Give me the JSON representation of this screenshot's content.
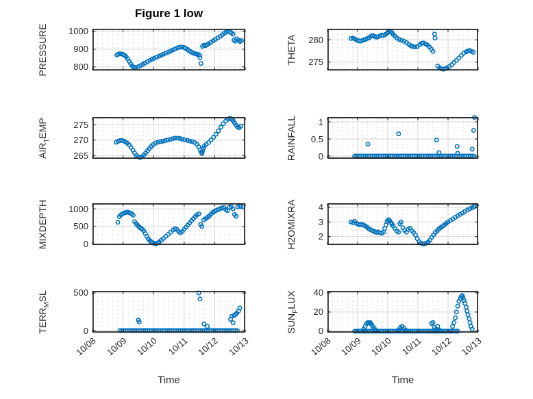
{
  "figure": {
    "title": "Figure 1 low",
    "x_axis_label": "Time",
    "marker_color": "#0072BD",
    "axis_color": "#262626",
    "major_grid_color": "#d5d5d5",
    "minor_grid_color": "#c4c4c4"
  },
  "x_axis": {
    "lim": [
      0,
      5
    ],
    "tick_values": [
      0,
      1,
      2,
      3,
      4,
      5
    ],
    "tick_labels": [
      "10/08",
      "10/09",
      "10/10",
      "10/11",
      "10/12",
      "10/13"
    ]
  },
  "chart_data": [
    {
      "name": "PRESSURE",
      "type": "scatter",
      "col": 0,
      "row": 0,
      "ylabel": {
        "pre": "PRESSURE",
        "sub": "",
        "post": ""
      },
      "ylim": [
        780,
        1015
      ],
      "yticks": [
        800,
        900,
        1000
      ],
      "ytick_labels": [
        "800",
        "900",
        "1000"
      ],
      "x": [
        0.8,
        0.85,
        0.9,
        0.95,
        1.0,
        1.05,
        1.1,
        1.15,
        1.2,
        1.25,
        1.3,
        1.35,
        1.42,
        1.5,
        1.58,
        1.65,
        1.72,
        1.8,
        1.88,
        1.95,
        2.02,
        2.1,
        2.18,
        2.25,
        2.32,
        2.4,
        2.48,
        2.55,
        2.62,
        2.7,
        2.78,
        2.85,
        2.92,
        3.0,
        3.05,
        3.1,
        3.15,
        3.2,
        3.25,
        3.3,
        3.35,
        3.4,
        3.45,
        3.5,
        3.52,
        3.55,
        3.6,
        3.65,
        3.7,
        3.75,
        3.8,
        3.88,
        3.95,
        4.02,
        4.1,
        4.18,
        4.25,
        4.32,
        4.38,
        4.44,
        4.5,
        4.55,
        4.6,
        4.63,
        4.67,
        4.72,
        4.78,
        4.83,
        4.88
      ],
      "y": [
        868,
        872,
        874,
        873,
        870,
        866,
        858,
        846,
        832,
        818,
        806,
        798,
        797,
        802,
        808,
        815,
        822,
        830,
        837,
        843,
        849,
        855,
        861,
        866,
        872,
        877,
        883,
        889,
        895,
        901,
        907,
        911,
        912,
        909,
        905,
        899,
        893,
        887,
        882,
        878,
        875,
        872,
        870,
        868,
        852,
        820,
        916,
        922,
        920,
        925,
        931,
        939,
        947,
        955,
        963,
        972,
        981,
        990,
        997,
        1000,
        998,
        992,
        984,
        952,
        945,
        958,
        950,
        943,
        948
      ]
    },
    {
      "name": "THETA",
      "type": "scatter",
      "col": 1,
      "row": 0,
      "ylabel": {
        "pre": "THETA",
        "sub": "",
        "post": ""
      },
      "ylim": [
        273.1,
        282.5
      ],
      "yticks": [
        275,
        280
      ],
      "ytick_labels": [
        "275",
        "280"
      ],
      "x": [
        0.78,
        0.84,
        0.9,
        0.96,
        1.02,
        1.08,
        1.14,
        1.2,
        1.26,
        1.32,
        1.38,
        1.44,
        1.5,
        1.56,
        1.62,
        1.68,
        1.74,
        1.8,
        1.86,
        1.92,
        1.98,
        2.02,
        2.06,
        2.1,
        2.14,
        2.18,
        2.24,
        2.3,
        2.38,
        2.46,
        2.54,
        2.62,
        2.7,
        2.76,
        2.82,
        2.9,
        2.98,
        3.06,
        3.12,
        3.18,
        3.26,
        3.32,
        3.38,
        3.44,
        3.5,
        3.55,
        3.57,
        3.66,
        3.72,
        3.78,
        3.84,
        3.9,
        3.96,
        4.04,
        4.12,
        4.2,
        4.28,
        4.36,
        4.44,
        4.52,
        4.6,
        4.66,
        4.72,
        4.78,
        4.84
      ],
      "y": [
        280.3,
        280.4,
        280.2,
        280.0,
        279.8,
        279.7,
        279.8,
        280.0,
        280.1,
        280.3,
        280.5,
        280.8,
        281.0,
        280.8,
        280.6,
        280.7,
        280.9,
        281.1,
        281.0,
        281.2,
        281.5,
        281.8,
        282.0,
        281.9,
        281.6,
        281.2,
        280.8,
        280.4,
        280.1,
        279.9,
        279.7,
        279.4,
        279.0,
        278.7,
        278.5,
        278.4,
        278.5,
        278.9,
        279.2,
        279.3,
        279.1,
        278.8,
        278.4,
        277.9,
        277.4,
        281.3,
        280.4,
        274.1,
        273.7,
        273.5,
        273.4,
        273.5,
        273.7,
        274.0,
        274.4,
        274.9,
        275.4,
        275.9,
        276.5,
        277.0,
        277.3,
        277.5,
        277.6,
        277.4,
        277.2
      ]
    },
    {
      "name": "AIR_TEMP",
      "type": "scatter",
      "col": 0,
      "row": 1,
      "ylabel": {
        "pre": "AIR",
        "sub": "T",
        "post": "EMP"
      },
      "ylim": [
        263.9,
        277.5
      ],
      "yticks": [
        265,
        270,
        275
      ],
      "ytick_labels": [
        "265",
        "270",
        "275"
      ],
      "x": [
        0.78,
        0.84,
        0.9,
        0.96,
        1.02,
        1.08,
        1.14,
        1.2,
        1.26,
        1.32,
        1.38,
        1.44,
        1.5,
        1.56,
        1.62,
        1.68,
        1.74,
        1.8,
        1.86,
        1.92,
        1.98,
        2.06,
        2.14,
        2.22,
        2.3,
        2.38,
        2.46,
        2.54,
        2.62,
        2.7,
        2.78,
        2.86,
        2.94,
        3.02,
        3.1,
        3.18,
        3.26,
        3.34,
        3.42,
        3.48,
        3.52,
        3.56,
        3.58,
        3.6,
        3.63,
        3.66,
        3.72,
        3.8,
        3.88,
        3.96,
        4.04,
        4.12,
        4.2,
        4.28,
        4.36,
        4.44,
        4.5,
        4.55,
        4.6,
        4.65,
        4.7,
        4.75,
        4.8,
        4.85
      ],
      "y": [
        269.3,
        269.6,
        269.8,
        269.9,
        269.7,
        269.4,
        269.0,
        268.4,
        267.6,
        266.7,
        265.8,
        265.0,
        264.5,
        264.3,
        264.6,
        265.2,
        265.8,
        266.5,
        267.2,
        267.9,
        268.5,
        269.0,
        269.3,
        269.5,
        269.6,
        269.8,
        270.0,
        270.2,
        270.4,
        270.6,
        270.6,
        270.5,
        270.3,
        270.1,
        269.9,
        269.7,
        269.5,
        269.2,
        268.6,
        267.8,
        266.8,
        266.0,
        265.6,
        266.4,
        267.3,
        268.0,
        268.6,
        269.2,
        270.0,
        270.9,
        271.9,
        273.0,
        274.2,
        275.3,
        276.2,
        276.8,
        277.1,
        276.8,
        276.3,
        275.6,
        274.9,
        274.3,
        274.0,
        274.5
      ]
    },
    {
      "name": "RAINFALL",
      "type": "scatter",
      "col": 1,
      "row": 1,
      "ylabel": {
        "pre": "RAINFALL",
        "sub": "",
        "post": ""
      },
      "ylim": [
        -0.08,
        1.14
      ],
      "yticks": [
        0,
        0.5,
        1
      ],
      "ytick_labels": [
        "0",
        "0.5",
        "1"
      ],
      "x": [
        0.9,
        0.96,
        1.02,
        1.08,
        1.14,
        1.2,
        1.26,
        1.32,
        1.38,
        1.44,
        1.5,
        1.56,
        1.62,
        1.68,
        1.74,
        1.8,
        1.86,
        1.92,
        1.98,
        2.04,
        2.1,
        2.16,
        2.22,
        2.28,
        2.34,
        2.4,
        2.46,
        2.52,
        2.58,
        2.64,
        2.7,
        2.76,
        2.82,
        2.88,
        2.94,
        3.0,
        3.06,
        3.12,
        3.18,
        3.24,
        3.3,
        3.36,
        3.42,
        3.48,
        3.54,
        3.6,
        3.66,
        3.72,
        3.78,
        3.84,
        3.9,
        3.96,
        4.02,
        4.08,
        4.14,
        4.2,
        4.26,
        4.32,
        4.38,
        4.44,
        4.5,
        4.56,
        4.62,
        4.68,
        4.74,
        4.8,
        4.86,
        1.34,
        2.36,
        3.62,
        3.7,
        4.3,
        4.32,
        4.8,
        4.85,
        4.88
      ],
      "y": [
        0,
        0,
        0,
        0,
        0,
        0,
        0,
        0,
        0,
        0,
        0,
        0,
        0,
        0,
        0,
        0,
        0,
        0,
        0,
        0,
        0,
        0,
        0,
        0,
        0,
        0,
        0,
        0,
        0,
        0,
        0,
        0,
        0,
        0,
        0,
        0,
        0,
        0,
        0,
        0,
        0,
        0,
        0,
        0,
        0,
        0,
        0,
        0,
        0,
        0,
        0,
        0,
        0,
        0,
        0,
        0,
        0,
        0,
        0,
        0,
        0,
        0,
        0,
        0,
        0,
        0,
        0,
        0.35,
        0.65,
        0.47,
        0.1,
        0.28,
        0.08,
        0.2,
        0.75,
        1.13
      ]
    },
    {
      "name": "MIXDEPTH",
      "type": "scatter",
      "col": 0,
      "row": 2,
      "ylabel": {
        "pre": "MIXDEPTH",
        "sub": "",
        "post": ""
      },
      "ylim": [
        -25,
        1160
      ],
      "yticks": [
        0,
        500,
        1000
      ],
      "ytick_labels": [
        "0",
        "500",
        "1000"
      ],
      "x": [
        0.83,
        0.88,
        0.93,
        0.98,
        1.03,
        1.08,
        1.13,
        1.18,
        1.23,
        1.28,
        1.33,
        1.38,
        1.43,
        1.48,
        1.53,
        1.58,
        1.63,
        1.68,
        1.73,
        1.78,
        1.83,
        1.88,
        1.93,
        1.98,
        2.03,
        2.08,
        2.13,
        2.18,
        2.25,
        2.32,
        2.4,
        2.48,
        2.56,
        2.64,
        2.7,
        2.76,
        2.82,
        2.88,
        2.94,
        3.0,
        3.06,
        3.12,
        3.18,
        3.24,
        3.3,
        3.36,
        3.42,
        3.48,
        3.54,
        3.58,
        3.64,
        3.7,
        3.76,
        3.82,
        3.88,
        3.94,
        4.0,
        4.06,
        4.12,
        4.18,
        4.24,
        4.3,
        4.36,
        4.42,
        4.48,
        4.54,
        4.6,
        4.65,
        4.7,
        4.76,
        4.82,
        4.87
      ],
      "y": [
        620,
        780,
        830,
        860,
        880,
        895,
        905,
        900,
        885,
        860,
        820,
        640,
        580,
        530,
        490,
        450,
        420,
        380,
        300,
        220,
        150,
        100,
        60,
        35,
        20,
        10,
        30,
        60,
        110,
        160,
        220,
        280,
        340,
        400,
        440,
        420,
        350,
        320,
        360,
        420,
        480,
        540,
        600,
        660,
        720,
        780,
        830,
        860,
        560,
        500,
        680,
        720,
        760,
        800,
        850,
        900,
        930,
        960,
        985,
        1005,
        1025,
        1040,
        980,
        950,
        1045,
        1060,
        1000,
        840,
        790,
        1060,
        1080,
        1070
      ]
    },
    {
      "name": "H2OMIXRA",
      "type": "scatter",
      "col": 1,
      "row": 2,
      "ylabel": {
        "pre": "H2OMIXRA",
        "sub": "",
        "post": ""
      },
      "ylim": [
        1.42,
        4.28
      ],
      "yticks": [
        2,
        3,
        4
      ],
      "ytick_labels": [
        "2",
        "3",
        "4"
      ],
      "x": [
        0.78,
        0.84,
        0.9,
        0.96,
        1.02,
        1.08,
        1.14,
        1.2,
        1.26,
        1.32,
        1.38,
        1.44,
        1.5,
        1.56,
        1.62,
        1.68,
        1.74,
        1.8,
        1.86,
        1.9,
        1.94,
        1.98,
        2.02,
        2.06,
        2.1,
        2.14,
        2.18,
        2.24,
        2.3,
        2.36,
        2.4,
        2.44,
        2.5,
        2.56,
        2.62,
        2.68,
        2.74,
        2.8,
        2.86,
        2.92,
        2.98,
        3.04,
        3.1,
        3.16,
        3.22,
        3.28,
        3.34,
        3.4,
        3.46,
        3.52,
        3.58,
        3.64,
        3.7,
        3.76,
        3.82,
        3.88,
        3.94,
        4.0,
        4.08,
        4.16,
        4.24,
        4.32,
        4.4,
        4.48,
        4.56,
        4.64,
        4.72,
        4.8,
        4.86,
        4.9
      ],
      "y": [
        3.0,
        2.95,
        3.05,
        2.9,
        2.85,
        2.8,
        2.85,
        2.78,
        2.72,
        2.62,
        2.52,
        2.45,
        2.4,
        2.34,
        2.28,
        2.32,
        2.26,
        2.22,
        2.3,
        2.55,
        2.8,
        3.05,
        3.15,
        3.1,
        2.95,
        2.85,
        2.72,
        2.55,
        2.38,
        2.3,
        2.88,
        3.0,
        2.6,
        2.42,
        2.3,
        2.5,
        2.58,
        2.4,
        2.28,
        2.1,
        1.85,
        1.65,
        1.55,
        1.48,
        1.5,
        1.55,
        1.62,
        1.75,
        1.95,
        2.12,
        2.28,
        2.4,
        2.52,
        2.62,
        2.7,
        2.8,
        2.9,
        3.0,
        3.1,
        3.2,
        3.32,
        3.42,
        3.52,
        3.62,
        3.72,
        3.82,
        3.9,
        3.98,
        4.05,
        4.08
      ]
    },
    {
      "name": "TERR_MSL",
      "type": "scatter",
      "col": 0,
      "row": 3,
      "ylabel": {
        "pre": "TERR",
        "sub": "M",
        "post": "SL"
      },
      "ylim": [
        -27,
        527
      ],
      "yticks": [
        0,
        500
      ],
      "ytick_labels": [
        "0",
        "500"
      ],
      "x": [
        0.9,
        0.96,
        1.02,
        1.08,
        1.14,
        1.2,
        1.26,
        1.32,
        1.38,
        1.44,
        1.5,
        1.56,
        1.62,
        1.68,
        1.74,
        1.8,
        1.86,
        1.92,
        1.98,
        2.04,
        2.1,
        2.16,
        2.22,
        2.28,
        2.34,
        2.4,
        2.46,
        2.52,
        2.58,
        2.64,
        2.7,
        2.76,
        2.82,
        2.88,
        2.94,
        3.0,
        3.06,
        3.12,
        3.18,
        3.24,
        3.3,
        3.36,
        3.42,
        3.48,
        3.54,
        3.6,
        3.66,
        3.72,
        3.78,
        3.84,
        3.9,
        3.96,
        4.02,
        4.08,
        4.14,
        4.2,
        4.26,
        4.32,
        4.38,
        4.44,
        4.5,
        4.56,
        4.62,
        4.68,
        4.74,
        1.5,
        1.53,
        3.48,
        3.52,
        3.65,
        3.76,
        4.52,
        4.56,
        4.6,
        4.63,
        4.68,
        4.72,
        4.78,
        4.82
      ],
      "y": [
        0,
        0,
        0,
        0,
        0,
        0,
        0,
        0,
        0,
        0,
        0,
        0,
        0,
        0,
        0,
        0,
        0,
        0,
        0,
        0,
        0,
        0,
        0,
        0,
        0,
        0,
        0,
        0,
        0,
        0,
        0,
        0,
        0,
        0,
        0,
        0,
        0,
        0,
        0,
        0,
        0,
        0,
        0,
        0,
        0,
        0,
        0,
        0,
        0,
        0,
        0,
        0,
        0,
        0,
        0,
        0,
        0,
        0,
        0,
        0,
        0,
        0,
        0,
        0,
        0,
        140,
        115,
        500,
        420,
        90,
        55,
        150,
        190,
        105,
        200,
        215,
        230,
        260,
        300
      ]
    },
    {
      "name": "SUN_FLUX",
      "type": "scatter",
      "col": 1,
      "row": 3,
      "ylabel": {
        "pre": "SUN",
        "sub": "F",
        "post": "LUX"
      },
      "ylim": [
        -1.5,
        42
      ],
      "yticks": [
        0,
        20,
        40
      ],
      "ytick_labels": [
        "0",
        "20",
        "40"
      ],
      "x": [
        0.9,
        0.96,
        1.02,
        1.08,
        1.14,
        1.2,
        1.26,
        1.32,
        1.38,
        1.44,
        1.5,
        1.56,
        1.62,
        1.68,
        1.74,
        1.8,
        1.86,
        1.92,
        1.98,
        2.04,
        2.1,
        2.16,
        2.22,
        2.28,
        2.34,
        2.4,
        2.46,
        2.52,
        2.58,
        2.64,
        2.7,
        2.76,
        2.82,
        2.88,
        2.94,
        3.0,
        3.06,
        3.12,
        3.18,
        3.24,
        3.3,
        3.36,
        3.42,
        3.48,
        3.54,
        3.6,
        3.66,
        3.72,
        3.78,
        3.84,
        3.9,
        3.96,
        4.02,
        4.08,
        4.14,
        4.2,
        4.26,
        4.32,
        1.2,
        1.25,
        1.3,
        1.34,
        1.38,
        1.42,
        1.46,
        1.5,
        1.55,
        1.6,
        2.36,
        2.42,
        2.48,
        2.54,
        2.6,
        3.45,
        3.5,
        3.55,
        3.6,
        3.66,
        3.72,
        4.15,
        4.2,
        4.24,
        4.28,
        4.32,
        4.36,
        4.4,
        4.44,
        4.47,
        4.5,
        4.53,
        4.56,
        4.6,
        4.63,
        4.66,
        4.7,
        4.73,
        4.76,
        4.8
      ],
      "y": [
        0,
        0,
        0,
        0,
        0,
        0,
        0,
        0,
        0,
        0,
        0,
        0,
        0,
        0,
        0,
        0,
        0,
        0,
        0,
        0,
        0,
        0,
        0,
        0,
        0,
        0,
        0,
        0,
        0,
        0,
        0,
        0,
        0,
        0,
        0,
        0,
        0,
        0,
        0,
        0,
        0,
        0,
        0,
        0,
        0,
        0,
        0,
        0,
        0,
        0,
        0,
        0,
        0,
        0,
        0,
        0,
        0,
        0,
        2,
        5,
        8,
        9,
        8.5,
        9,
        7,
        5,
        3,
        1,
        1.5,
        4,
        5,
        3,
        1,
        8,
        9,
        4,
        2,
        5,
        1,
        5,
        9,
        14,
        20,
        26,
        31,
        34,
        36,
        37,
        35,
        32,
        29,
        25,
        21,
        17,
        13,
        9,
        5,
        2
      ]
    }
  ]
}
